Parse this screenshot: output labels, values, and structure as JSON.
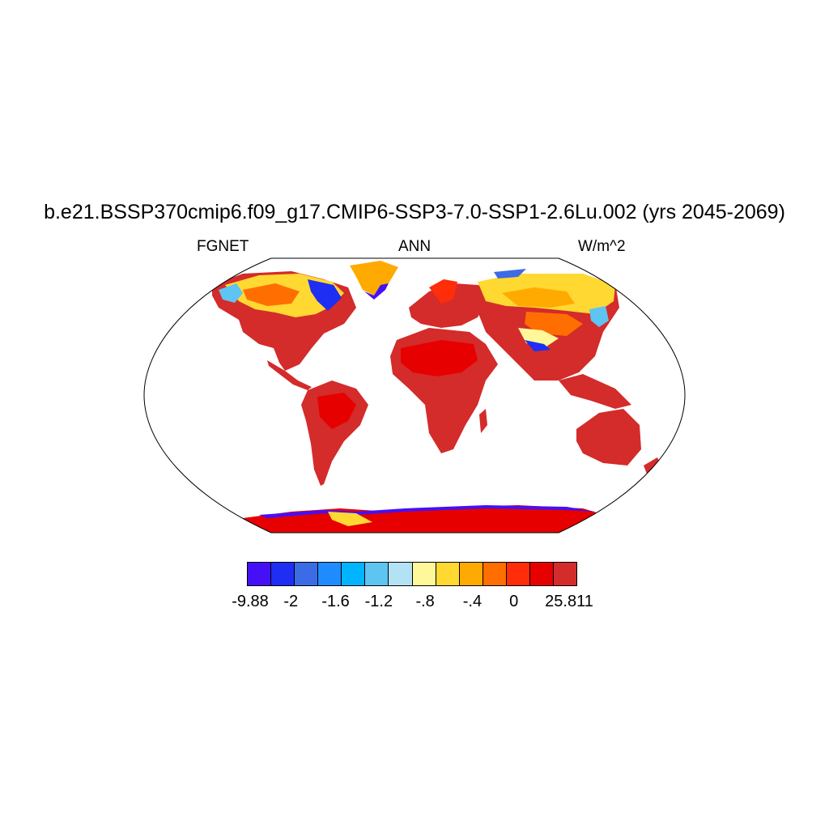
{
  "title": "b.e21.BSSP370cmip6.f09_g17.CMIP6-SSP3-7.0-SSP1-2.6Lu.002 (yrs 2045-2069)",
  "subtitle_left": "FGNET",
  "subtitle_center": "ANN",
  "subtitle_right": "W/m^2",
  "colorbar": {
    "colors": [
      "#4510f5",
      "#1e2ef2",
      "#3c6be6",
      "#1e8cff",
      "#00b4ff",
      "#5ec4f2",
      "#b4e2f5",
      "#fff89a",
      "#ffd832",
      "#ffaa00",
      "#ff6e00",
      "#ff2d0a",
      "#e60000",
      "#d42b2b"
    ],
    "labels": [
      "-9.88",
      "-2",
      "-1.6",
      "-1.2",
      "-.8",
      "-.4",
      "0",
      "25.811"
    ]
  },
  "map": {
    "projection": "Robinson",
    "variable": "FGNET",
    "period": "ANN",
    "units": "W/m^2",
    "dominant_land_color": "#d42b2b",
    "ocean_color": "#ffffff"
  }
}
